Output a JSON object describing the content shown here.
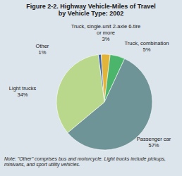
{
  "chart_data": {
    "type": "pie",
    "title": "Figure 2-2. Highway Vehicle-Miles of Travel by Vehicle Type: 2002",
    "categories": [
      "Other",
      "Truck, single-unit 2-axle 6-tire or more",
      "Truck, combination",
      "Passenger car",
      "Light trucks"
    ],
    "values": [
      1,
      3,
      5,
      57,
      34
    ],
    "value_labels": [
      "1%",
      "3%",
      "5%",
      "57%",
      "34%"
    ],
    "colors": [
      "#3d62a8",
      "#e2b53a",
      "#4bb56b",
      "#6f9497",
      "#b9d88c"
    ],
    "data_labels": true,
    "annotations": [
      "Note: \"Other\" comprises bus and motorcycle. Light trucks include pickups, minivans, and sport utility vehicles."
    ]
  }
}
